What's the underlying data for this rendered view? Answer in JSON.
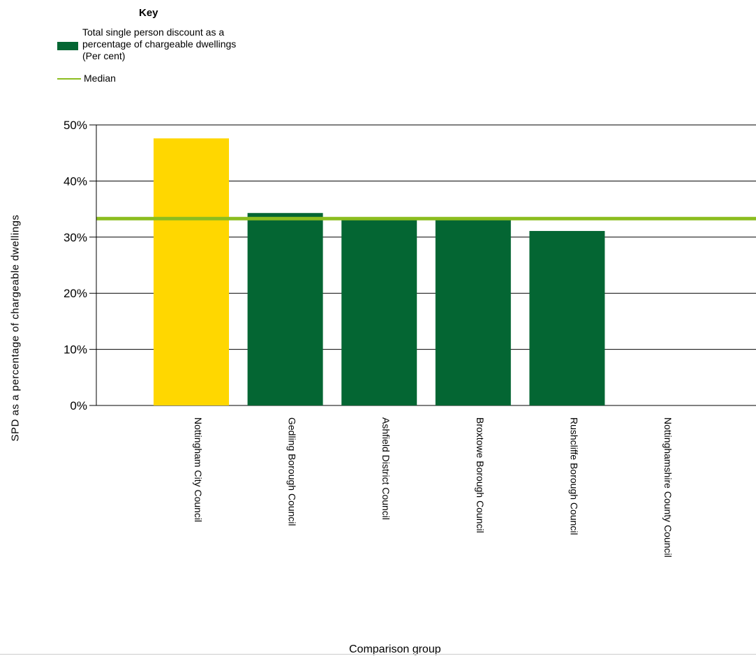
{
  "legend": {
    "title": "Key",
    "bar_label": "Total single person discount as a percentage of chargeable dwellings (Per cent)",
    "median_label": "Median"
  },
  "colors": {
    "bar": "#046633",
    "highlight": "#ffd700",
    "median": "#8cbd1f",
    "grid": "#000000"
  },
  "chart_data": {
    "type": "bar",
    "xlabel": "Comparison group",
    "ylabel": "SPD as a percentage of chargeable dwellings",
    "ylim": [
      0,
      50
    ],
    "y_ticks": [
      0,
      10,
      20,
      30,
      40,
      50
    ],
    "y_tick_labels": [
      "0%",
      "10%",
      "20%",
      "30%",
      "40%",
      "50%"
    ],
    "grid": true,
    "legend_position": "top-left",
    "categories": [
      "Nottingham City Council",
      "Gedling Borough Council",
      "Ashfield District Council",
      "Broxtowe Borough Council",
      "Rushcliffe Borough Council",
      "Nottinghamshire County Council"
    ],
    "series": [
      {
        "name": "Total single person discount as a percentage of chargeable dwellings (Per cent)",
        "values": [
          47.6,
          34.3,
          33.3,
          33.3,
          31.1,
          null
        ]
      }
    ],
    "highlighted_category": "Nottingham City Council",
    "median": 33.3
  }
}
